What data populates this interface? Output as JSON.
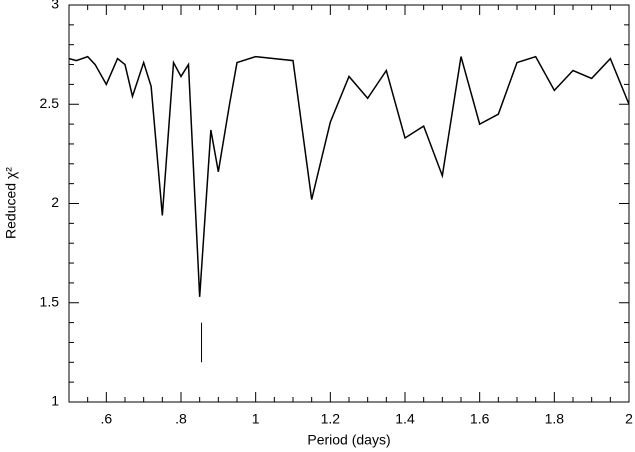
{
  "chart_data": {
    "type": "line",
    "xlabel": "Period (days)",
    "ylabel": "Reduced χ²",
    "x": [
      0.5,
      0.52,
      0.55,
      0.57,
      0.6,
      0.63,
      0.65,
      0.67,
      0.7,
      0.72,
      0.75,
      0.78,
      0.8,
      0.82,
      0.85,
      0.88,
      0.9,
      0.93,
      0.95,
      1.0,
      1.1,
      1.15,
      1.2,
      1.25,
      1.3,
      1.35,
      1.4,
      1.45,
      1.5,
      1.55,
      1.6,
      1.65,
      1.7,
      1.75,
      1.8,
      1.85,
      1.9,
      1.95,
      2.0
    ],
    "series": [
      {
        "color": "#000000",
        "values": [
          2.73,
          2.72,
          2.74,
          2.7,
          2.6,
          2.73,
          2.7,
          2.54,
          2.71,
          2.59,
          1.94,
          2.71,
          2.64,
          2.7,
          1.53,
          2.37,
          2.16,
          2.5,
          2.71,
          2.74,
          2.72,
          2.02,
          2.41,
          2.64,
          2.53,
          2.67,
          2.33,
          2.39,
          2.14,
          2.74,
          2.4,
          2.45,
          2.71,
          2.74,
          2.57,
          2.67,
          2.63,
          2.73,
          2.5
        ]
      }
    ],
    "marker": {
      "x": 0.855,
      "y": [
        1.2,
        1.4
      ]
    },
    "xlim": [
      0.5,
      2
    ],
    "ylim": [
      1,
      3
    ],
    "xticks": [
      {
        "value": 0.6,
        "label": ".6"
      },
      {
        "value": 0.8,
        "label": ".8"
      },
      1,
      1.2,
      1.4,
      1.6,
      1.8,
      2
    ],
    "yticks": [
      1,
      1.5,
      2,
      2.5,
      3
    ],
    "xminorticks": [
      0.55,
      0.65,
      0.7,
      0.75,
      0.85,
      0.9,
      0.95,
      1.05,
      1.1,
      1.15,
      1.25,
      1.3,
      1.35,
      1.45,
      1.5,
      1.55,
      1.65,
      1.7,
      1.75,
      1.85,
      1.9,
      1.95
    ],
    "yminorticks": [
      1.1,
      1.2,
      1.3,
      1.4,
      1.6,
      1.7,
      1.8,
      1.9,
      2.1,
      2.2,
      2.3,
      2.4,
      2.6,
      2.7,
      2.8,
      2.9
    ],
    "grid": false
  }
}
